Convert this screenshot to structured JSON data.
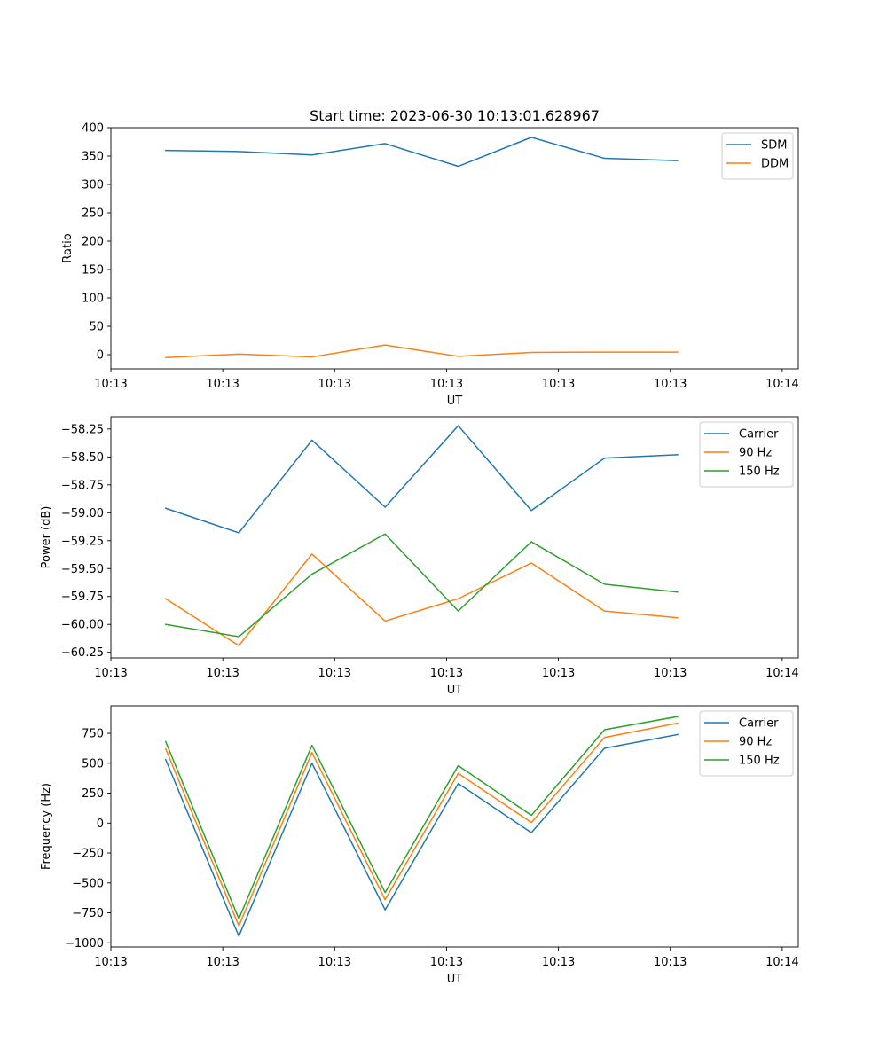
{
  "figure_title": "Start time: 2023-06-30 10:13:01.628967",
  "chart_data": [
    {
      "type": "line",
      "title": "Start time: 2023-06-30 10:13:01.628967",
      "xlabel": "UT",
      "ylabel": "Ratio",
      "x": [
        0,
        1,
        2,
        3,
        4,
        5,
        6,
        7
      ],
      "xlim": [
        -0.75,
        8.65
      ],
      "xticks": [
        {
          "x": -0.75,
          "label": "10:13"
        },
        {
          "x": 0.78,
          "label": "10:13"
        },
        {
          "x": 2.31,
          "label": "10:13"
        },
        {
          "x": 3.84,
          "label": "10:13"
        },
        {
          "x": 5.37,
          "label": "10:13"
        },
        {
          "x": 6.9,
          "label": "10:13"
        },
        {
          "x": 8.43,
          "label": "10:14"
        }
      ],
      "ylim": [
        -25,
        400
      ],
      "yticks": [
        {
          "y": 400,
          "label": "400"
        },
        {
          "y": 350,
          "label": "350"
        },
        {
          "y": 300,
          "label": "300"
        },
        {
          "y": 250,
          "label": "250"
        },
        {
          "y": 200,
          "label": "200"
        },
        {
          "y": 150,
          "label": "150"
        },
        {
          "y": 100,
          "label": "100"
        },
        {
          "y": 50,
          "label": "50"
        },
        {
          "y": 0,
          "label": "0"
        }
      ],
      "legend_position": "top-right",
      "series": [
        {
          "name": "SDM",
          "color": "#1f77b4",
          "values": [
            360,
            358,
            352,
            372,
            332,
            383,
            346,
            342
          ]
        },
        {
          "name": "DDM",
          "color": "#ff7f0e",
          "values": [
            -5,
            1,
            -4,
            17,
            -3,
            4,
            4.5,
            4.5
          ]
        }
      ]
    },
    {
      "type": "line",
      "xlabel": "UT",
      "ylabel": "Power (dB)",
      "x": [
        0,
        1,
        2,
        3,
        4,
        5,
        6,
        7
      ],
      "xlim": [
        -0.75,
        8.65
      ],
      "xticks": [
        {
          "x": -0.75,
          "label": "10:13"
        },
        {
          "x": 0.78,
          "label": "10:13"
        },
        {
          "x": 2.31,
          "label": "10:13"
        },
        {
          "x": 3.84,
          "label": "10:13"
        },
        {
          "x": 5.37,
          "label": "10:13"
        },
        {
          "x": 6.9,
          "label": "10:13"
        },
        {
          "x": 8.43,
          "label": "10:14"
        }
      ],
      "ylim": [
        -60.3,
        -58.14
      ],
      "yticks": [
        {
          "y": -58.25,
          "label": "−58.25"
        },
        {
          "y": -58.5,
          "label": "−58.50"
        },
        {
          "y": -58.75,
          "label": "−58.75"
        },
        {
          "y": -59.0,
          "label": "−59.00"
        },
        {
          "y": -59.25,
          "label": "−59.25"
        },
        {
          "y": -59.5,
          "label": "−59.50"
        },
        {
          "y": -59.75,
          "label": "−59.75"
        },
        {
          "y": -60.0,
          "label": "−60.00"
        },
        {
          "y": -60.25,
          "label": "−60.25"
        }
      ],
      "legend_position": "top-right",
      "series": [
        {
          "name": "Carrier",
          "color": "#1f77b4",
          "values": [
            -58.96,
            -59.18,
            -58.35,
            -58.95,
            -58.22,
            -58.98,
            -58.51,
            -58.48
          ]
        },
        {
          "name": "90 Hz",
          "color": "#ff7f0e",
          "values": [
            -59.77,
            -60.19,
            -59.37,
            -59.97,
            -59.77,
            -59.45,
            -59.88,
            -59.94
          ]
        },
        {
          "name": "150 Hz",
          "color": "#2ca02c",
          "values": [
            -60.0,
            -60.11,
            -59.55,
            -59.19,
            -59.88,
            -59.26,
            -59.64,
            -59.71
          ]
        }
      ]
    },
    {
      "type": "line",
      "xlabel": "UT",
      "ylabel": "Frequency (Hz)",
      "x": [
        0,
        1,
        2,
        3,
        4,
        5,
        6,
        7
      ],
      "xlim": [
        -0.75,
        8.65
      ],
      "xticks": [
        {
          "x": -0.75,
          "label": "10:13"
        },
        {
          "x": 0.78,
          "label": "10:13"
        },
        {
          "x": 2.31,
          "label": "10:13"
        },
        {
          "x": 3.84,
          "label": "10:13"
        },
        {
          "x": 5.37,
          "label": "10:13"
        },
        {
          "x": 6.9,
          "label": "10:13"
        },
        {
          "x": 8.43,
          "label": "10:14"
        }
      ],
      "ylim": [
        -1035,
        980
      ],
      "yticks": [
        {
          "y": 750,
          "label": "750"
        },
        {
          "y": 500,
          "label": "500"
        },
        {
          "y": 250,
          "label": "250"
        },
        {
          "y": 0,
          "label": "0"
        },
        {
          "y": -250,
          "label": "−250"
        },
        {
          "y": -500,
          "label": "−500"
        },
        {
          "y": -750,
          "label": "−750"
        },
        {
          "y": -1000,
          "label": "−1000"
        }
      ],
      "legend_position": "top-right",
      "series": [
        {
          "name": "Carrier",
          "color": "#1f77b4",
          "values": [
            530,
            -945,
            500,
            -725,
            330,
            -80,
            625,
            740
          ]
        },
        {
          "name": "90 Hz",
          "color": "#ff7f0e",
          "values": [
            620,
            -860,
            590,
            -640,
            415,
            5,
            715,
            835
          ]
        },
        {
          "name": "150 Hz",
          "color": "#2ca02c",
          "values": [
            680,
            -800,
            650,
            -580,
            480,
            65,
            780,
            890
          ]
        }
      ]
    }
  ]
}
